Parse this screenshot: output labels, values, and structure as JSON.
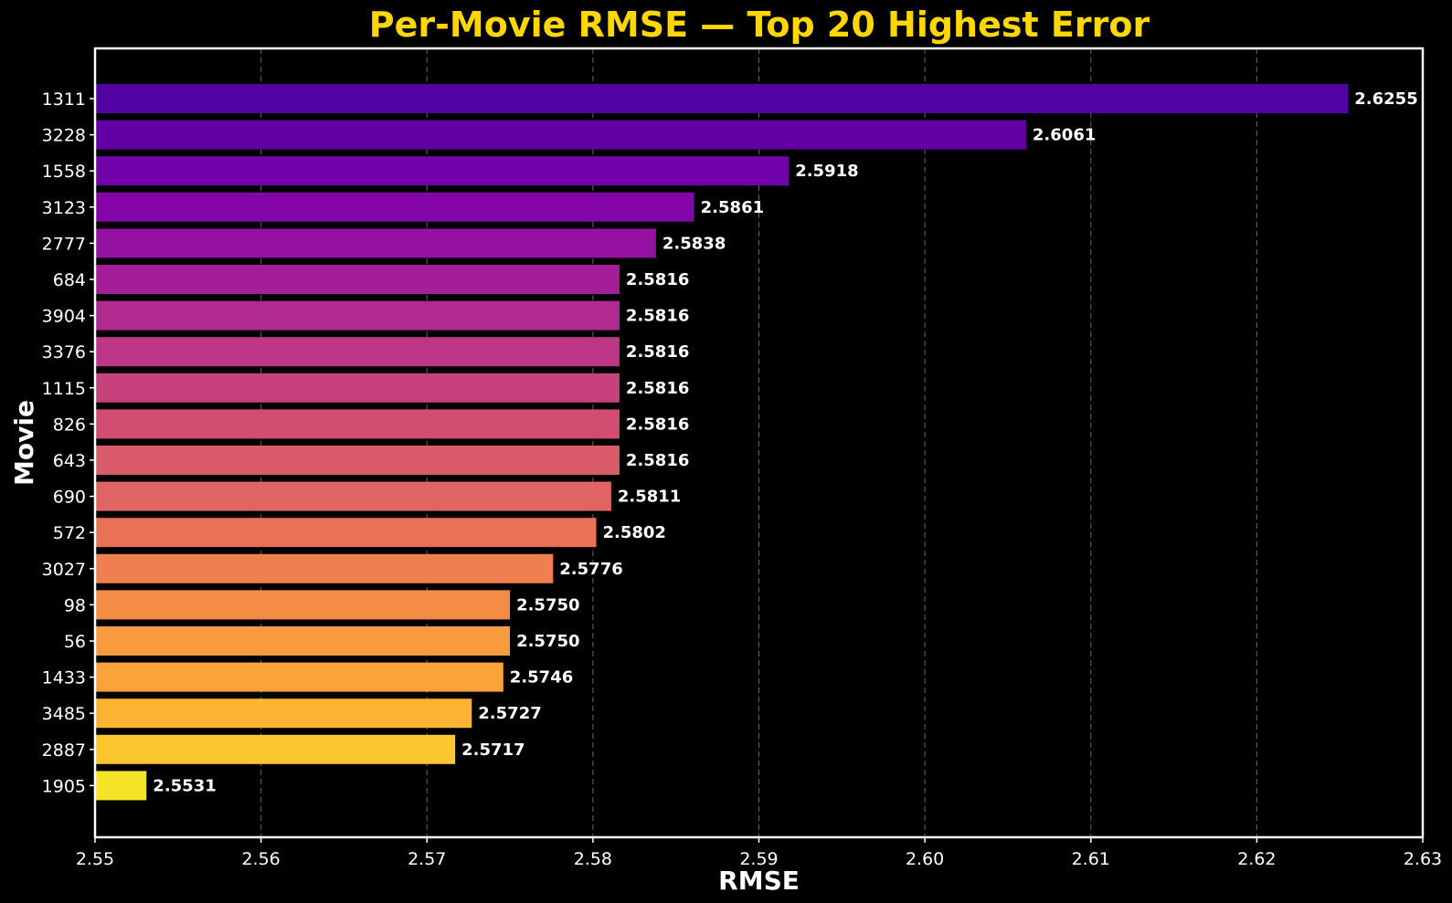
{
  "chart_data": {
    "type": "bar",
    "orientation": "horizontal",
    "title": "Per-Movie RMSE — Top 20 Highest Error",
    "xlabel": "RMSE",
    "ylabel": "Movie",
    "xlim": [
      2.55,
      2.63
    ],
    "xticks": [
      "2.55",
      "2.56",
      "2.57",
      "2.58",
      "2.59",
      "2.60",
      "2.61",
      "2.62",
      "2.63"
    ],
    "categories": [
      "1311",
      "3228",
      "1558",
      "3123",
      "2777",
      "684",
      "3904",
      "3376",
      "1115",
      "826",
      "643",
      "690",
      "572",
      "3027",
      "98",
      "56",
      "1433",
      "3485",
      "2887",
      "1905"
    ],
    "values": [
      2.6255,
      2.6061,
      2.5918,
      2.5861,
      2.5838,
      2.5816,
      2.5816,
      2.5816,
      2.5816,
      2.5816,
      2.5816,
      2.5811,
      2.5802,
      2.5776,
      2.575,
      2.575,
      2.5746,
      2.5727,
      2.5717,
      2.5531
    ],
    "value_labels": [
      "2.6255",
      "2.6061",
      "2.5918",
      "2.5861",
      "2.5838",
      "2.5816",
      "2.5816",
      "2.5816",
      "2.5816",
      "2.5816",
      "2.5816",
      "2.5811",
      "2.5802",
      "2.5776",
      "2.5750",
      "2.5750",
      "2.5746",
      "2.5727",
      "2.5717",
      "2.5531"
    ],
    "colormap": "plasma",
    "bar_colors": [
      "#5302a3",
      "#6200a6",
      "#7101a8",
      "#8305a7",
      "#9511a1",
      "#a41e9a",
      "#b12a90",
      "#bd3786",
      "#c7427c",
      "#d14e72",
      "#da5b69",
      "#e16462",
      "#e97158",
      "#f07f4f",
      "#f58c46",
      "#f89a3e",
      "#fba238",
      "#fcb432",
      "#fbc62e",
      "#f5e326"
    ],
    "grid": "x",
    "title_color": "#ffd700",
    "background": "#000000"
  }
}
